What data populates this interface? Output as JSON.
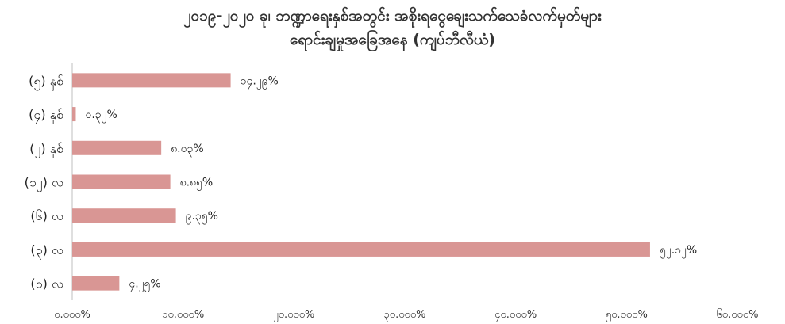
{
  "chart_data": {
    "type": "bar",
    "orientation": "horizontal",
    "title_line1": "၂၀၁၉-၂၀၂၀ ခု၊ ဘဏ္ဍာရေးနှစ်အတွင်း အစိုးရငွေချေးသက်သေခံလက်မှတ်များ",
    "title_line2": "ရောင်းချမှုအခြေအနေ (ကျပ်ဘီလီယံ)",
    "categories": [
      "(၁) လ",
      "(၃) လ",
      "(၆) လ",
      "(၁၂) လ",
      "(၂) နှစ်",
      "(၄) နှစ်",
      "(၅) နှစ်"
    ],
    "values": [
      4.25,
      52.12,
      9.35,
      8.85,
      8.03,
      0.32,
      14.29
    ],
    "data_labels": [
      "၄.၂၅%",
      "၅၂.၁၂%",
      "၉.၃၅%",
      "၈.၈၅%",
      "၈.၀၃%",
      "၀.၃၂%",
      "၁၄.၂၉%"
    ],
    "x_ticks": [
      0,
      10,
      20,
      30,
      40,
      50,
      60
    ],
    "x_tick_labels": [
      "၀.၀၀၀%",
      "၁၀.၀၀၀%",
      "၂၀.၀၀၀%",
      "၃၀.၀၀၀%",
      "၄၀.၀၀၀%",
      "၅၀.၀၀၀%",
      "၆၀.၀၀၀%"
    ],
    "xlim": [
      0,
      60
    ],
    "grid": false,
    "legend": "none",
    "bar_color": "#d99694"
  }
}
